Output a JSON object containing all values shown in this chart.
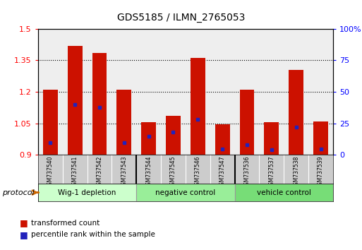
{
  "title": "GDS5185 / ILMN_2765053",
  "samples": [
    "GSM737540",
    "GSM737541",
    "GSM737542",
    "GSM737543",
    "GSM737544",
    "GSM737545",
    "GSM737546",
    "GSM737547",
    "GSM737536",
    "GSM737537",
    "GSM737538",
    "GSM737539"
  ],
  "groups": [
    {
      "label": "Wig-1 depletion",
      "indices": [
        0,
        1,
        2,
        3
      ],
      "color": "#ccffcc"
    },
    {
      "label": "negative control",
      "indices": [
        4,
        5,
        6,
        7
      ],
      "color": "#99ee99"
    },
    {
      "label": "vehicle control",
      "indices": [
        8,
        9,
        10,
        11
      ],
      "color": "#77dd77"
    }
  ],
  "bar_values": [
    1.21,
    1.42,
    1.385,
    1.21,
    1.055,
    1.085,
    1.36,
    1.045,
    1.21,
    1.055,
    1.305,
    1.06
  ],
  "percentile_values": [
    10,
    40,
    38,
    10,
    15,
    18,
    28,
    5,
    8,
    4,
    22,
    5
  ],
  "bar_bottom": 0.9,
  "ylim": [
    0.9,
    1.5
  ],
  "yticks": [
    0.9,
    1.05,
    1.2,
    1.35,
    1.5
  ],
  "right_yticks": [
    0,
    25,
    50,
    75,
    100
  ],
  "bar_color": "#cc1100",
  "blue_color": "#2222bb",
  "bar_width": 0.6,
  "bg_color": "#eeeeee",
  "label_bg": "#cccccc"
}
